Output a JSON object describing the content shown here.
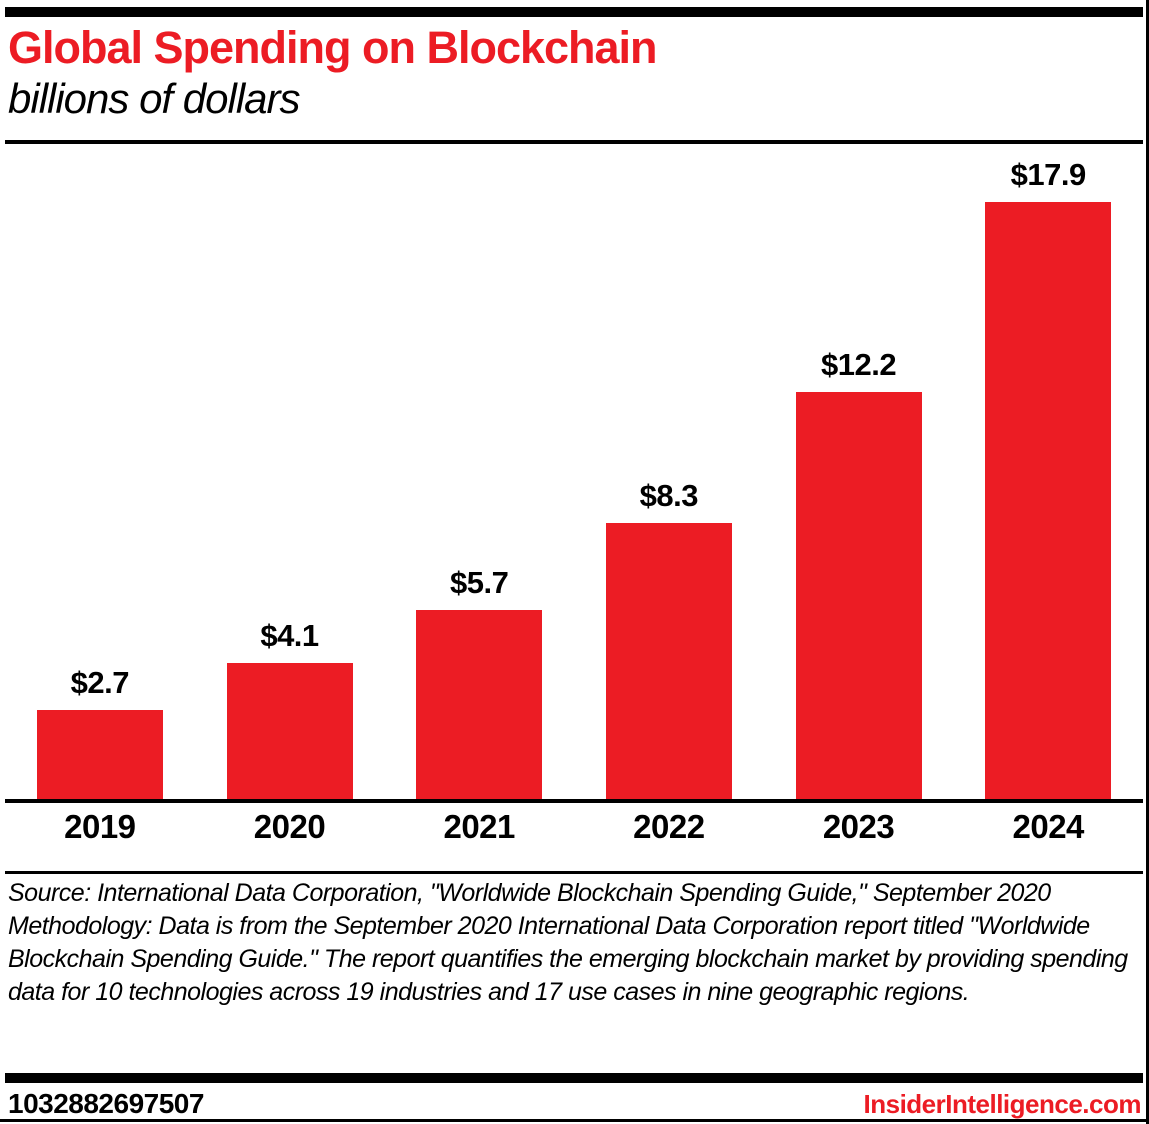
{
  "header": {
    "title": "Global Spending on Blockchain",
    "subtitle": "billions of dollars"
  },
  "chart_data": {
    "type": "bar",
    "title": "Global Spending on Blockchain",
    "subtitle": "billions of dollars",
    "unit": "billions of US dollars",
    "categories": [
      "2019",
      "2020",
      "2021",
      "2022",
      "2023",
      "2024"
    ],
    "values": [
      2.7,
      4.1,
      5.7,
      8.3,
      12.2,
      17.9
    ],
    "value_labels": [
      "$2.7",
      "$4.1",
      "$5.7",
      "$8.3",
      "$12.2",
      "$17.9"
    ],
    "xlabel": "",
    "ylabel": "",
    "ylim": [
      0,
      17.9
    ],
    "grid": false,
    "legend": false,
    "bar_color": "#EC1C24"
  },
  "footer": {
    "source": "Source: International Data Corporation, \"Worldwide Blockchain Spending Guide,\" September 2020",
    "methodology": "Methodology: Data is from the September 2020 International Data Corporation report titled \"Worldwide Blockchain Spending Guide.\" The report quantifies the emerging blockchain market by providing spending data for 10 technologies across 19 industries and 17 use cases in nine geographic regions.",
    "chart_id": "1032882697507",
    "site": "InsiderIntelligence.com"
  },
  "colors": {
    "accent_red": "#EC1C24",
    "text_black": "#000000",
    "background": "#FFFFFF"
  }
}
